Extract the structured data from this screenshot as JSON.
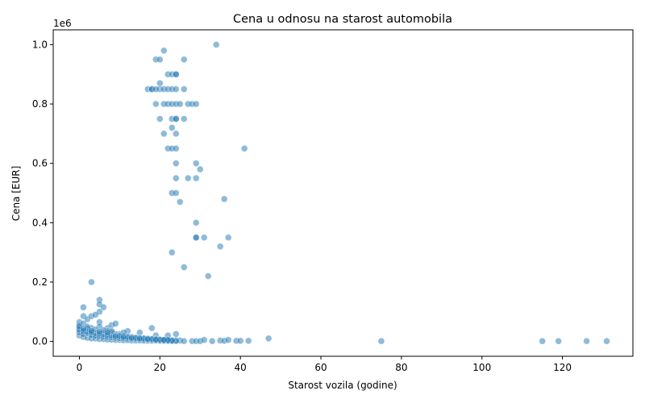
{
  "chart_data": {
    "type": "scatter",
    "title": "Cena u odnosu na starost automobila",
    "xlabel": "Starost vozila (godine)",
    "ylabel": "Cena [EUR]",
    "y_offset_label": "1e6",
    "xlim": [
      -6.5,
      137.5
    ],
    "ylim": [
      -50000,
      1050000
    ],
    "x_ticks": [
      0,
      20,
      40,
      60,
      80,
      100,
      120
    ],
    "y_ticks": [
      0,
      200000,
      400000,
      600000,
      800000,
      1000000
    ],
    "y_tick_labels": [
      "0.0",
      "0.2",
      "0.4",
      "0.6",
      "0.8",
      "1.0"
    ],
    "grid": false,
    "marker_color": "#1f77b4",
    "marker_alpha": 0.5,
    "x": [
      34,
      21,
      19,
      20,
      26,
      20,
      22,
      23,
      24,
      24,
      20,
      17,
      18,
      18,
      19,
      21,
      22,
      23,
      24,
      26,
      19,
      21,
      22,
      23,
      24,
      25,
      27,
      28,
      29,
      23,
      26,
      20,
      24,
      24,
      23,
      21,
      24,
      22,
      23,
      24,
      41,
      29,
      30,
      24,
      24,
      27,
      29,
      23,
      24,
      36,
      25,
      29,
      29,
      29,
      31,
      37,
      35,
      23,
      26,
      32,
      3,
      5,
      5,
      5,
      6,
      1,
      1,
      2,
      3,
      4,
      5,
      0,
      0,
      1,
      2,
      3,
      5,
      7,
      8,
      9,
      12,
      15,
      18,
      24,
      22,
      19,
      10,
      11,
      0,
      1,
      2,
      3,
      4,
      5,
      6,
      7,
      8,
      9,
      10,
      11,
      12,
      13,
      14,
      15,
      16,
      17,
      18,
      19,
      20,
      21,
      22,
      23,
      24,
      25,
      0,
      1,
      2,
      3,
      4,
      5,
      6,
      7,
      8,
      9,
      10,
      11,
      12,
      13,
      14,
      15,
      16,
      17,
      18,
      19,
      20,
      21,
      22,
      23,
      24,
      26,
      28,
      29,
      30,
      31,
      33,
      35,
      36,
      37,
      39,
      40,
      42,
      47,
      75,
      115,
      119,
      126,
      131,
      0,
      1,
      2,
      3,
      4,
      5,
      6,
      7,
      8,
      9,
      10,
      11,
      12,
      13,
      14,
      15,
      16,
      17,
      18,
      19,
      20,
      21,
      22,
      23,
      0,
      2,
      4,
      6,
      8,
      10,
      12,
      14,
      16,
      18,
      20,
      22,
      1,
      3,
      5,
      7,
      9,
      11,
      13,
      15,
      17,
      19,
      21,
      0,
      2,
      4,
      6,
      8,
      1,
      3,
      5,
      7
    ],
    "y": [
      1000000,
      980000,
      950000,
      950000,
      950000,
      870000,
      900000,
      900000,
      900000,
      900000,
      850000,
      850000,
      850000,
      850000,
      850000,
      850000,
      850000,
      850000,
      850000,
      850000,
      800000,
      800000,
      800000,
      800000,
      800000,
      800000,
      800000,
      800000,
      800000,
      750000,
      750000,
      750000,
      750000,
      750000,
      720000,
      700000,
      700000,
      650000,
      650000,
      650000,
      650000,
      600000,
      580000,
      600000,
      550000,
      550000,
      550000,
      500000,
      500000,
      480000,
      470000,
      400000,
      350000,
      350000,
      350000,
      350000,
      320000,
      300000,
      250000,
      220000,
      200000,
      140000,
      125000,
      100000,
      115000,
      115000,
      85000,
      75000,
      85000,
      90000,
      65000,
      65000,
      55000,
      60000,
      50000,
      45000,
      50000,
      45000,
      55000,
      60000,
      35000,
      30000,
      45000,
      25000,
      20000,
      20000,
      25000,
      30000,
      40000,
      35000,
      30000,
      25000,
      20000,
      25000,
      30000,
      35000,
      30000,
      25000,
      20000,
      20000,
      15000,
      15000,
      12000,
      12000,
      10000,
      10000,
      8000,
      8000,
      6000,
      5000,
      5000,
      4000,
      4000,
      3000,
      20000,
      15000,
      12000,
      10000,
      10000,
      8000,
      8000,
      6000,
      6000,
      5000,
      5000,
      4000,
      4000,
      3000,
      3000,
      3000,
      2000,
      2000,
      2000,
      2000,
      1500,
      1500,
      1000,
      1000,
      1000,
      1000,
      1000,
      1000,
      1000,
      5000,
      1000,
      3000,
      2000,
      5000,
      2000,
      2000,
      2000,
      10000,
      1000,
      1000,
      1000,
      1000,
      1000,
      30000,
      25000,
      28000,
      22000,
      20000,
      18000,
      16000,
      15000,
      14000,
      12000,
      11000,
      10000,
      9000,
      8000,
      8000,
      7000,
      6000,
      6000,
      5000,
      5000,
      4000,
      4000,
      3000,
      3000,
      40000,
      32000,
      28000,
      24000,
      20000,
      18000,
      15000,
      12000,
      10000,
      8000,
      6000,
      5000,
      35000,
      30000,
      26000,
      22000,
      18000,
      15000,
      12000,
      10000,
      8000,
      6000,
      5000,
      50000,
      45000,
      40000,
      38000,
      35000,
      42000,
      36000,
      33000,
      30000
    ]
  }
}
